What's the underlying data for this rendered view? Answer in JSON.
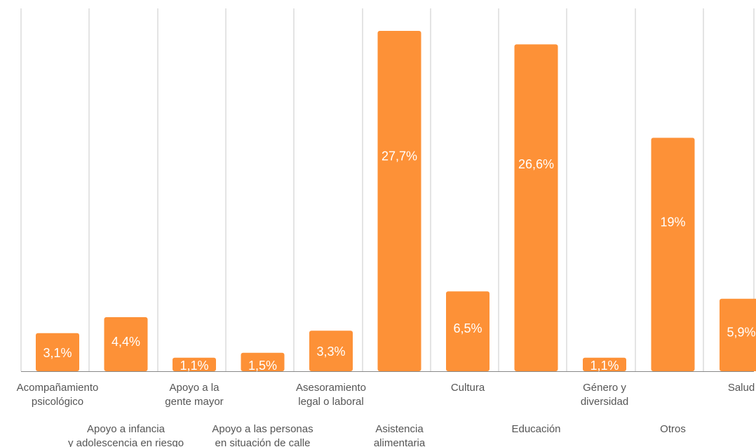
{
  "chart_data": {
    "type": "bar",
    "categories": [
      [
        "Acompañamiento",
        "psicológico"
      ],
      [
        "Apoyo a infancia",
        "y adolescencia en riesgo"
      ],
      [
        "Apoyo a la",
        "gente mayor"
      ],
      [
        "Apoyo a las personas",
        "en situación de calle"
      ],
      [
        "Asesoramiento",
        "legal o laboral"
      ],
      [
        "Asistencia",
        "alimentaria"
      ],
      [
        "Cultura"
      ],
      [
        "Educación"
      ],
      [
        "Género y",
        "diversidad"
      ],
      [
        "Otros"
      ],
      [
        "Salud"
      ]
    ],
    "values": [
      3.1,
      4.4,
      1.1,
      1.5,
      3.3,
      27.7,
      6.5,
      26.6,
      1.1,
      19,
      5.9
    ],
    "data_labels": [
      "3,1%",
      "4,4%",
      "1,1%",
      "1,5%",
      "3,3%",
      "27,7%",
      "6,5%",
      "26,6%",
      "1,1%",
      "19%",
      "5,9%"
    ],
    "ylim": [
      0,
      29
    ],
    "grid": "vertical",
    "legend": "none",
    "colors": {
      "bar": "#fd9137",
      "grid": "#c8c8c8",
      "axis": "#888888",
      "tick_text": "#555555",
      "data_label_text": "#ffffff"
    }
  }
}
